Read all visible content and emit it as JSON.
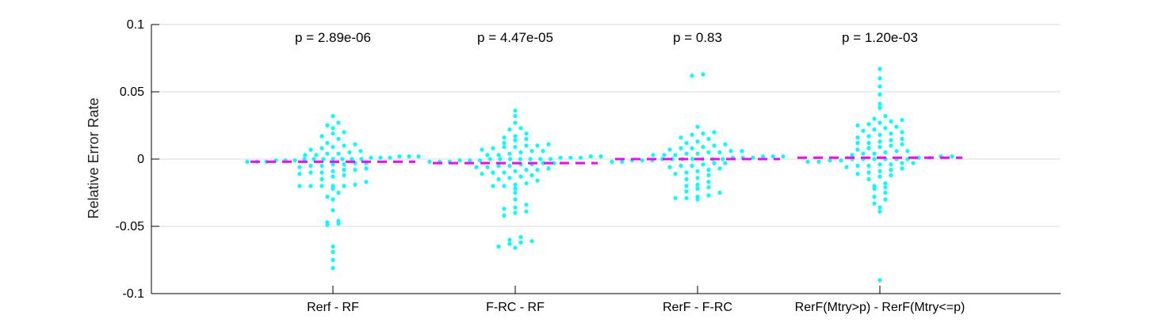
{
  "chart_data": {
    "type": "scatter",
    "subtype": "beeswarm",
    "title": "",
    "xlabel": "",
    "ylabel": "Relative Error Rate",
    "ylim": [
      -0.1,
      0.1
    ],
    "yticks": [
      -0.1,
      -0.05,
      0,
      0.05,
      0.1
    ],
    "ytick_labels": [
      "-0.1",
      "-0.05",
      "0",
      "0.05",
      "0.1"
    ],
    "grid": "horizontal",
    "point_color": "#00ffff",
    "mean_line_color": "#ff00ff",
    "categories": [
      "Rerf - RF",
      "F-RC - RF",
      "RerF - F-RC",
      "RerF(Mtry>p) - RerF(Mtry<=p)"
    ],
    "p_values": [
      "p = 2.89e-06",
      "p = 4.47e-05",
      "p = 0.83",
      "p = 1.20e-03"
    ],
    "means": [
      -0.002,
      -0.003,
      0.0,
      0.001
    ],
    "series": [
      {
        "values": [
          -0.081,
          -0.075,
          -0.069,
          -0.065,
          -0.049,
          -0.048,
          -0.047,
          -0.046,
          -0.038,
          -0.03,
          -0.028,
          -0.025,
          -0.022,
          -0.02,
          -0.02,
          -0.02,
          -0.02,
          -0.02,
          -0.019,
          -0.017,
          -0.015,
          -0.013,
          -0.012,
          -0.011,
          -0.01,
          -0.01,
          -0.009,
          -0.008,
          -0.008,
          -0.007,
          -0.006,
          -0.005,
          -0.005,
          -0.004,
          -0.004,
          -0.003,
          -0.003,
          -0.002,
          -0.002,
          -0.002,
          -0.001,
          -0.001,
          -0.001,
          0.0,
          0.0,
          0.0,
          0.0,
          0.0,
          0.0,
          0.0,
          0.001,
          0.001,
          0.001,
          0.002,
          0.002,
          0.002,
          0.003,
          0.003,
          0.004,
          0.004,
          0.005,
          0.006,
          0.007,
          0.008,
          0.009,
          0.01,
          0.011,
          0.012,
          0.015,
          0.017,
          0.019,
          0.02,
          0.023,
          0.025,
          0.027,
          0.032
        ]
      },
      {
        "values": [
          -0.066,
          -0.065,
          -0.063,
          -0.062,
          -0.061,
          -0.06,
          -0.058,
          -0.042,
          -0.04,
          -0.039,
          -0.037,
          -0.036,
          -0.034,
          -0.03,
          -0.025,
          -0.022,
          -0.02,
          -0.02,
          -0.019,
          -0.018,
          -0.016,
          -0.015,
          -0.014,
          -0.013,
          -0.012,
          -0.011,
          -0.01,
          -0.01,
          -0.009,
          -0.008,
          -0.008,
          -0.007,
          -0.006,
          -0.006,
          -0.005,
          -0.005,
          -0.004,
          -0.004,
          -0.003,
          -0.003,
          -0.002,
          -0.002,
          -0.002,
          -0.001,
          -0.001,
          -0.001,
          0.0,
          0.0,
          0.0,
          0.0,
          0.0,
          0.0,
          0.0,
          0.001,
          0.001,
          0.001,
          0.002,
          0.002,
          0.003,
          0.003,
          0.004,
          0.005,
          0.006,
          0.006,
          0.007,
          0.008,
          0.009,
          0.009,
          0.01,
          0.01,
          0.011,
          0.012,
          0.014,
          0.015,
          0.016,
          0.017,
          0.019,
          0.022,
          0.023,
          0.027,
          0.032,
          0.036
        ]
      },
      {
        "values": [
          -0.03,
          -0.029,
          -0.029,
          -0.028,
          -0.027,
          -0.025,
          -0.024,
          -0.022,
          -0.021,
          -0.02,
          -0.019,
          -0.017,
          -0.015,
          -0.014,
          -0.012,
          -0.011,
          -0.01,
          -0.009,
          -0.008,
          -0.007,
          -0.006,
          -0.005,
          -0.005,
          -0.004,
          -0.003,
          -0.003,
          -0.002,
          -0.002,
          -0.001,
          -0.001,
          -0.001,
          0.0,
          0.0,
          0.0,
          0.0,
          0.0,
          0.0,
          0.0,
          0.001,
          0.001,
          0.001,
          0.002,
          0.002,
          0.002,
          0.003,
          0.003,
          0.003,
          0.004,
          0.004,
          0.005,
          0.005,
          0.006,
          0.006,
          0.007,
          0.008,
          0.008,
          0.009,
          0.01,
          0.011,
          0.012,
          0.013,
          0.015,
          0.016,
          0.018,
          0.019,
          0.02,
          0.024,
          0.062,
          0.063
        ]
      },
      {
        "values": [
          -0.09,
          -0.039,
          -0.036,
          -0.033,
          -0.03,
          -0.028,
          -0.025,
          -0.022,
          -0.021,
          -0.02,
          -0.018,
          -0.015,
          -0.013,
          -0.012,
          -0.011,
          -0.01,
          -0.009,
          -0.008,
          -0.007,
          -0.006,
          -0.005,
          -0.005,
          -0.004,
          -0.004,
          -0.003,
          -0.003,
          -0.002,
          -0.002,
          -0.001,
          -0.001,
          0.0,
          0.0,
          0.0,
          0.0,
          0.0,
          0.0,
          0.001,
          0.001,
          0.002,
          0.002,
          0.003,
          0.004,
          0.004,
          0.005,
          0.006,
          0.006,
          0.007,
          0.008,
          0.009,
          0.01,
          0.011,
          0.012,
          0.012,
          0.013,
          0.014,
          0.015,
          0.016,
          0.017,
          0.018,
          0.019,
          0.02,
          0.021,
          0.022,
          0.023,
          0.024,
          0.025,
          0.026,
          0.027,
          0.028,
          0.029,
          0.03,
          0.032,
          0.038,
          0.041,
          0.048,
          0.054,
          0.06,
          0.067
        ]
      }
    ]
  }
}
